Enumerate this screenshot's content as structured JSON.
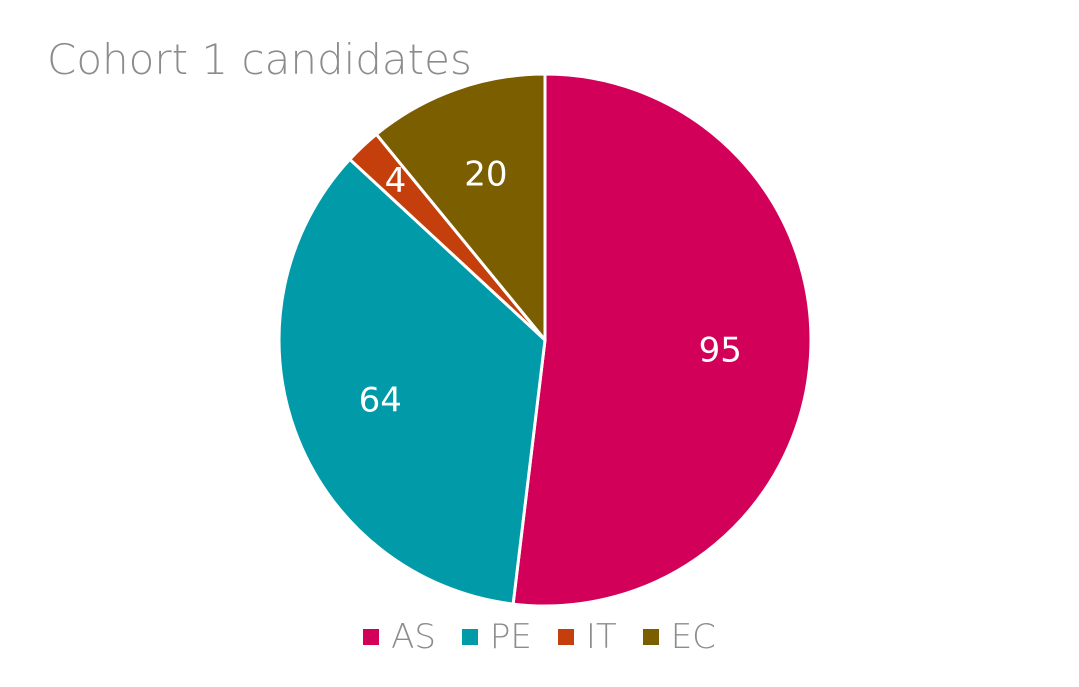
{
  "chart_data": {
    "type": "pie",
    "title": "Cohort 1 candidates",
    "categories": [
      "AS",
      "PE",
      "IT",
      "EC"
    ],
    "values": [
      95,
      64,
      4,
      20
    ],
    "colors": [
      "#d3005a",
      "#009aa8",
      "#c43f0c",
      "#7b5e00"
    ],
    "data_labels": [
      "95",
      "64",
      "4",
      "20"
    ],
    "legend": "bottom",
    "start_angle": "top, clockwise"
  }
}
